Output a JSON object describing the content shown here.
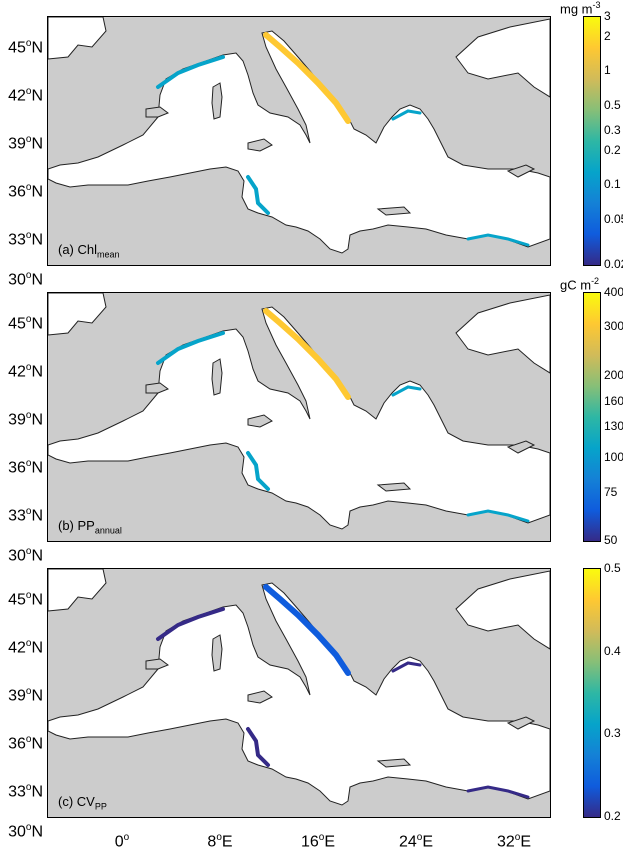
{
  "lat_labels": [
    "45",
    "42",
    "39",
    "36",
    "33",
    "30"
  ],
  "lat_hemisphere": "N",
  "lon_labels": [
    {
      "value": "0",
      "hemi": ""
    },
    {
      "value": "8",
      "hemi": "E"
    },
    {
      "value": "16",
      "hemi": "E"
    },
    {
      "value": "24",
      "hemi": "E"
    },
    {
      "value": "32",
      "hemi": "E"
    }
  ],
  "degree_symbol": "o",
  "panels": [
    {
      "label_prefix": "(a) Chl",
      "label_sub": "mean",
      "unit_base": "mg m",
      "unit_exp": "-3",
      "ticks": [
        "3",
        "2",
        "1",
        "0.5",
        "0.3",
        "0.2",
        "0.1",
        "0.05",
        "0.02"
      ],
      "scale": "log",
      "range": [
        0.02,
        3
      ]
    },
    {
      "label_prefix": "(b) PP",
      "label_sub": "annual",
      "unit_base": "gC m",
      "unit_exp": "-2",
      "ticks": [
        "400",
        "300",
        "200",
        "160",
        "130",
        "100",
        "75",
        "50"
      ],
      "scale": "log",
      "range": [
        50,
        400
      ]
    },
    {
      "label_prefix": "(c) CV",
      "label_sub": "PP",
      "unit_base": "",
      "unit_exp": "",
      "ticks": [
        "0.5",
        "0.4",
        "0.3",
        "0.2"
      ],
      "scale": "linear",
      "range": [
        0.2,
        0.5
      ]
    }
  ],
  "colors": {
    "land": "#cccccc",
    "sea_masked": "#ffffff",
    "colormap": [
      "#352a87",
      "#0f5cdd",
      "#1481d6",
      "#06a4ca",
      "#2eb7a4",
      "#87bf77",
      "#d1bb59",
      "#fec832",
      "#f9fb0e"
    ]
  }
}
